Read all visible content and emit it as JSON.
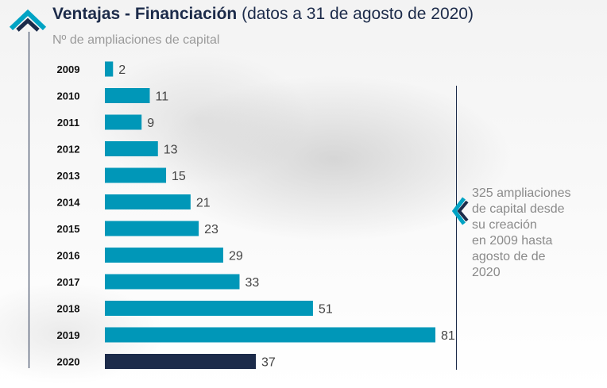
{
  "header": {
    "title_bold": "Ventajas - Financiación",
    "title_rest": " (datos a 31 de agosto de 2020)",
    "subtitle": "Nº de ampliaciones de capital"
  },
  "note": {
    "lines": [
      "325 ampliaciones",
      "de capital desde",
      "su creación",
      "en 2009 hasta",
      "agosto de de",
      "2020"
    ]
  },
  "colors": {
    "bar": "#0097b8",
    "highlight": "#1c2b4a",
    "accent": "#1c2b4a"
  },
  "icons": {
    "top": "chevron-up-icon",
    "note": "chevron-left-icon"
  },
  "chart_data": {
    "type": "bar",
    "orientation": "horizontal",
    "categories": [
      "2009",
      "2010",
      "2011",
      "2012",
      "2013",
      "2014",
      "2015",
      "2016",
      "2017",
      "2018",
      "2019",
      "2020"
    ],
    "values": [
      2,
      11,
      9,
      13,
      15,
      21,
      23,
      29,
      33,
      51,
      81,
      37
    ],
    "highlight_category": "2020",
    "title": "Ventajas - Financiación (datos a 31 de agosto de 2020)",
    "ylabel": "Nº de ampliaciones de capital",
    "xlim": [
      0,
      81
    ],
    "grid": false
  }
}
